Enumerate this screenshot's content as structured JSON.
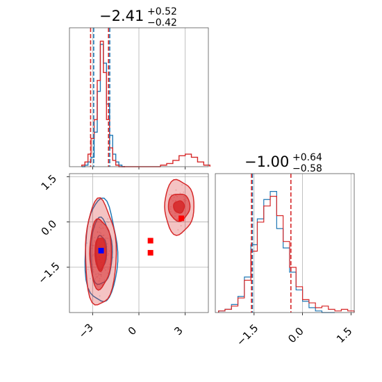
{
  "colors": {
    "series_a": "#1f77b4",
    "series_b": "#d62728",
    "marker_a": "#0000ff",
    "marker_b": "#ff0000",
    "grid": "#b0b0b0"
  },
  "titles": {
    "param1": {
      "median": "−2.41",
      "plus": "+0.52",
      "minus": "−0.42"
    },
    "param2": {
      "median": "−1.00",
      "plus": "+0.64",
      "minus": "−0.58"
    }
  },
  "chart_data": [
    {
      "type": "histogram",
      "panel": "param1-marginal",
      "xlim": [
        -4.5,
        4.5
      ],
      "grid": true,
      "quantile_lines": {
        "series_b": [
          -3.13,
          -1.97
        ],
        "series_a": [
          -2.93,
          -1.89
        ]
      },
      "bins_x": [
        -3.6,
        -3.4,
        -3.2,
        -3.0,
        -2.8,
        -2.6,
        -2.4,
        -2.2,
        -2.0,
        -1.8,
        -1.6,
        -1.4,
        -1.2,
        -1.0
      ],
      "series": [
        {
          "name": "",
          "color_key": "series_a",
          "counts": [
            0,
            1,
            3,
            6,
            22,
            48,
            78,
            66,
            40,
            20,
            8,
            3,
            1,
            0
          ]
        },
        {
          "name": "",
          "color_key": "series_b",
          "counts": [
            1,
            3,
            8,
            18,
            30,
            55,
            80,
            60,
            30,
            12,
            4,
            1,
            0,
            0
          ],
          "secondary_bump": {
            "x": [
              1.6,
              2.0,
              2.4,
              2.8,
              3.2,
              3.6,
              4.0,
              4.4
            ],
            "counts": [
              1,
              2,
              4,
              7,
              8,
              6,
              3,
              1
            ]
          }
        }
      ]
    },
    {
      "type": "histogram",
      "panel": "param2-marginal",
      "xlim": [
        -2.7,
        1.6
      ],
      "xticks": [
        "−1.5",
        "0.0",
        "1.5"
      ],
      "grid": true,
      "quantile_lines": {
        "series_b": [
          -1.58,
          -0.36
        ],
        "series_a": [
          -1.55
        ]
      },
      "series": [
        {
          "name": "",
          "color_key": "series_a",
          "bins_x": [
            -2.5,
            -2.3,
            -2.1,
            -1.9,
            -1.7,
            -1.5,
            -1.3,
            -1.1,
            -0.9,
            -0.7,
            -0.5,
            -0.3,
            -0.1,
            0.1,
            0.3,
            0.5,
            0.7,
            0.9
          ],
          "counts": [
            1,
            2,
            5,
            10,
            22,
            42,
            58,
            70,
            75,
            52,
            40,
            25,
            14,
            7,
            3,
            1,
            0,
            0
          ]
        },
        {
          "name": "",
          "color_key": "series_b",
          "bins_x": [
            -2.5,
            -2.3,
            -2.1,
            -1.9,
            -1.7,
            -1.5,
            -1.3,
            -1.1,
            -0.9,
            -0.7,
            -0.5,
            -0.3,
            -0.1,
            0.1,
            0.3,
            0.5,
            0.7,
            0.9,
            1.1,
            1.3,
            1.5
          ],
          "counts": [
            1,
            2,
            4,
            9,
            20,
            38,
            56,
            66,
            72,
            60,
            44,
            28,
            16,
            8,
            6,
            3,
            4,
            2,
            1,
            2,
            1
          ]
        }
      ]
    },
    {
      "type": "contour",
      "panel": "joint",
      "xlim": [
        -4.5,
        4.5
      ],
      "ylim": [
        -3.0,
        1.6
      ],
      "xticks": [
        "−3",
        "0",
        "3"
      ],
      "yticks": [
        "1.5",
        "0.0",
        "−1.5"
      ],
      "grid": true,
      "series": [
        {
          "name": "",
          "color_key": "series_a",
          "center": [
            -2.45,
            -1.0
          ],
          "contours": [
            {
              "rx": 0.35,
              "ry": 0.55
            },
            {
              "rx": 0.7,
              "ry": 1.1
            },
            {
              "rx": 1.05,
              "ry": 1.7
            }
          ]
        },
        {
          "name": "",
          "color_key": "series_b",
          "center": [
            -2.5,
            -1.05
          ],
          "contours": [
            {
              "rx": 0.35,
              "ry": 0.55
            },
            {
              "rx": 0.7,
              "ry": 1.15
            },
            {
              "rx": 1.0,
              "ry": 1.75
            }
          ]
        },
        {
          "name": "",
          "color_key": "series_b",
          "center": [
            2.6,
            0.5
          ],
          "contours": [
            {
              "rx": 0.35,
              "ry": 0.2
            },
            {
              "rx": 0.7,
              "ry": 0.45
            },
            {
              "rx": 0.95,
              "ry": 0.9
            }
          ]
        }
      ],
      "markers": [
        {
          "x": -2.45,
          "y": -0.95,
          "color_key": "marker_a"
        },
        {
          "x": 2.75,
          "y": 0.12,
          "color_key": "marker_b"
        },
        {
          "x": 0.75,
          "y": -0.62,
          "color_key": "marker_b"
        },
        {
          "x": 0.75,
          "y": -1.02,
          "color_key": "marker_b"
        }
      ]
    }
  ]
}
